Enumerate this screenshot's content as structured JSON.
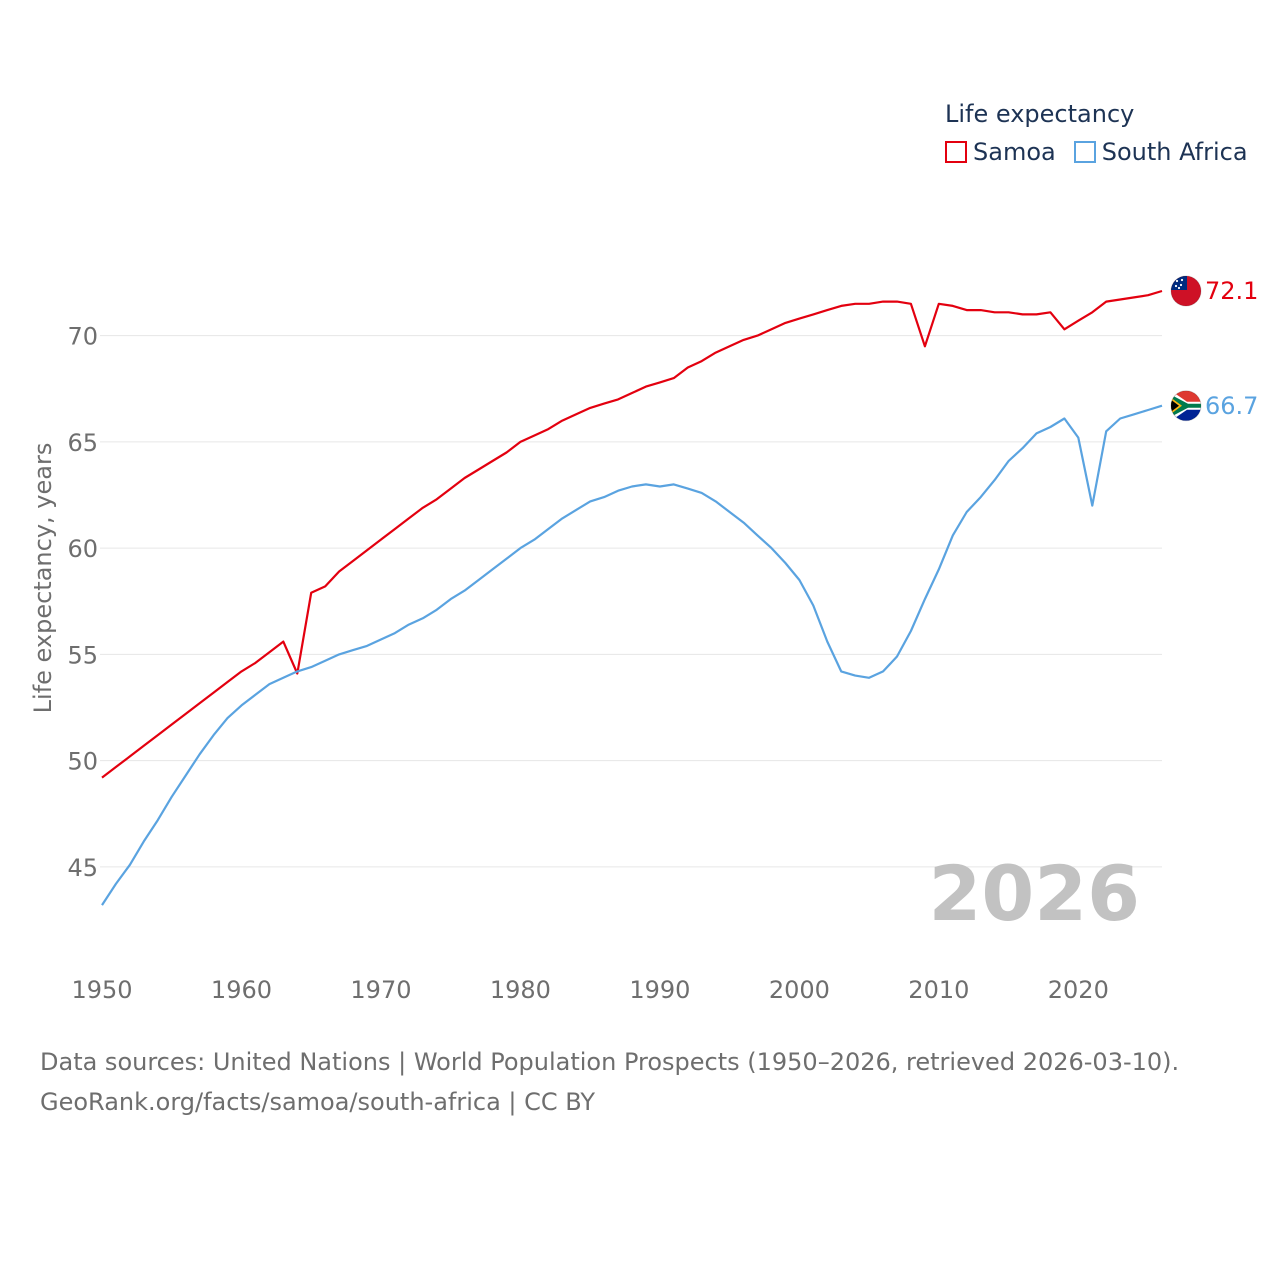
{
  "chart_data": {
    "type": "line",
    "legend_title": "Life expectancy",
    "ylabel": "Life expectancy, years",
    "xlabel": "",
    "year_watermark": "2026",
    "xlim": [
      1950,
      2026
    ],
    "ylim": [
      42.5,
      74.5
    ],
    "x_ticks": [
      "1950",
      "1960",
      "1970",
      "1980",
      "1990",
      "2000",
      "2010",
      "2020"
    ],
    "y_ticks": [
      "45",
      "50",
      "55",
      "60",
      "65",
      "70"
    ],
    "series": [
      {
        "name": "Samoa",
        "color": "#e3000f",
        "end_label": "72.1",
        "flag": "samoa-flag-icon",
        "points": [
          [
            1950,
            49.2
          ],
          [
            1951,
            49.7
          ],
          [
            1952,
            50.2
          ],
          [
            1953,
            50.7
          ],
          [
            1954,
            51.2
          ],
          [
            1955,
            51.7
          ],
          [
            1956,
            52.2
          ],
          [
            1957,
            52.7
          ],
          [
            1958,
            53.2
          ],
          [
            1959,
            53.7
          ],
          [
            1960,
            54.2
          ],
          [
            1961,
            54.6
          ],
          [
            1962,
            55.1
          ],
          [
            1963,
            55.6
          ],
          [
            1964,
            54.1
          ],
          [
            1965,
            57.9
          ],
          [
            1966,
            58.2
          ],
          [
            1967,
            58.9
          ],
          [
            1968,
            59.4
          ],
          [
            1969,
            59.9
          ],
          [
            1970,
            60.4
          ],
          [
            1971,
            60.9
          ],
          [
            1972,
            61.4
          ],
          [
            1973,
            61.9
          ],
          [
            1974,
            62.3
          ],
          [
            1975,
            62.8
          ],
          [
            1976,
            63.3
          ],
          [
            1977,
            63.7
          ],
          [
            1978,
            64.1
          ],
          [
            1979,
            64.5
          ],
          [
            1980,
            65.0
          ],
          [
            1981,
            65.3
          ],
          [
            1982,
            65.6
          ],
          [
            1983,
            66.0
          ],
          [
            1984,
            66.3
          ],
          [
            1985,
            66.6
          ],
          [
            1986,
            66.8
          ],
          [
            1987,
            67.0
          ],
          [
            1988,
            67.3
          ],
          [
            1989,
            67.6
          ],
          [
            1990,
            67.8
          ],
          [
            1991,
            68.0
          ],
          [
            1992,
            68.5
          ],
          [
            1993,
            68.8
          ],
          [
            1994,
            69.2
          ],
          [
            1995,
            69.5
          ],
          [
            1996,
            69.8
          ],
          [
            1997,
            70.0
          ],
          [
            1998,
            70.3
          ],
          [
            1999,
            70.6
          ],
          [
            2000,
            70.8
          ],
          [
            2001,
            71.0
          ],
          [
            2002,
            71.2
          ],
          [
            2003,
            71.4
          ],
          [
            2004,
            71.5
          ],
          [
            2005,
            71.5
          ],
          [
            2006,
            71.6
          ],
          [
            2007,
            71.6
          ],
          [
            2008,
            71.5
          ],
          [
            2009,
            69.5
          ],
          [
            2010,
            71.5
          ],
          [
            2011,
            71.4
          ],
          [
            2012,
            71.2
          ],
          [
            2013,
            71.2
          ],
          [
            2014,
            71.1
          ],
          [
            2015,
            71.1
          ],
          [
            2016,
            71.0
          ],
          [
            2017,
            71.0
          ],
          [
            2018,
            71.1
          ],
          [
            2019,
            70.3
          ],
          [
            2020,
            70.7
          ],
          [
            2021,
            71.1
          ],
          [
            2022,
            71.6
          ],
          [
            2023,
            71.7
          ],
          [
            2024,
            71.8
          ],
          [
            2025,
            71.9
          ],
          [
            2026,
            72.1
          ]
        ]
      },
      {
        "name": "South Africa",
        "color": "#5aa3e0",
        "end_label": "66.7",
        "flag": "south-africa-flag-icon",
        "points": [
          [
            1950,
            43.2
          ],
          [
            1951,
            44.2
          ],
          [
            1952,
            45.1
          ],
          [
            1953,
            46.2
          ],
          [
            1954,
            47.2
          ],
          [
            1955,
            48.3
          ],
          [
            1956,
            49.3
          ],
          [
            1957,
            50.3
          ],
          [
            1958,
            51.2
          ],
          [
            1959,
            52.0
          ],
          [
            1960,
            52.6
          ],
          [
            1961,
            53.1
          ],
          [
            1962,
            53.6
          ],
          [
            1963,
            53.9
          ],
          [
            1964,
            54.2
          ],
          [
            1965,
            54.4
          ],
          [
            1966,
            54.7
          ],
          [
            1967,
            55.0
          ],
          [
            1968,
            55.2
          ],
          [
            1969,
            55.4
          ],
          [
            1970,
            55.7
          ],
          [
            1971,
            56.0
          ],
          [
            1972,
            56.4
          ],
          [
            1973,
            56.7
          ],
          [
            1974,
            57.1
          ],
          [
            1975,
            57.6
          ],
          [
            1976,
            58.0
          ],
          [
            1977,
            58.5
          ],
          [
            1978,
            59.0
          ],
          [
            1979,
            59.5
          ],
          [
            1980,
            60.0
          ],
          [
            1981,
            60.4
          ],
          [
            1982,
            60.9
          ],
          [
            1983,
            61.4
          ],
          [
            1984,
            61.8
          ],
          [
            1985,
            62.2
          ],
          [
            1986,
            62.4
          ],
          [
            1987,
            62.7
          ],
          [
            1988,
            62.9
          ],
          [
            1989,
            63.0
          ],
          [
            1990,
            62.9
          ],
          [
            1991,
            63.0
          ],
          [
            1992,
            62.8
          ],
          [
            1993,
            62.6
          ],
          [
            1994,
            62.2
          ],
          [
            1995,
            61.7
          ],
          [
            1996,
            61.2
          ],
          [
            1997,
            60.6
          ],
          [
            1998,
            60.0
          ],
          [
            1999,
            59.3
          ],
          [
            2000,
            58.5
          ],
          [
            2001,
            57.3
          ],
          [
            2002,
            55.6
          ],
          [
            2003,
            54.2
          ],
          [
            2004,
            54.0
          ],
          [
            2005,
            53.9
          ],
          [
            2006,
            54.2
          ],
          [
            2007,
            54.9
          ],
          [
            2008,
            56.1
          ],
          [
            2009,
            57.6
          ],
          [
            2010,
            59.0
          ],
          [
            2011,
            60.6
          ],
          [
            2012,
            61.7
          ],
          [
            2013,
            62.4
          ],
          [
            2014,
            63.2
          ],
          [
            2015,
            64.1
          ],
          [
            2016,
            64.7
          ],
          [
            2017,
            65.4
          ],
          [
            2018,
            65.7
          ],
          [
            2019,
            66.1
          ],
          [
            2020,
            65.2
          ],
          [
            2021,
            62.0
          ],
          [
            2022,
            65.5
          ],
          [
            2023,
            66.1
          ],
          [
            2024,
            66.3
          ],
          [
            2025,
            66.5
          ],
          [
            2026,
            66.7
          ]
        ]
      }
    ]
  },
  "sources": {
    "line1": "Data sources: United Nations | World Population Prospects (1950–2026, retrieved 2026-03-10).",
    "line2": "GeoRank.org/facts/samoa/south-africa | CC BY"
  }
}
